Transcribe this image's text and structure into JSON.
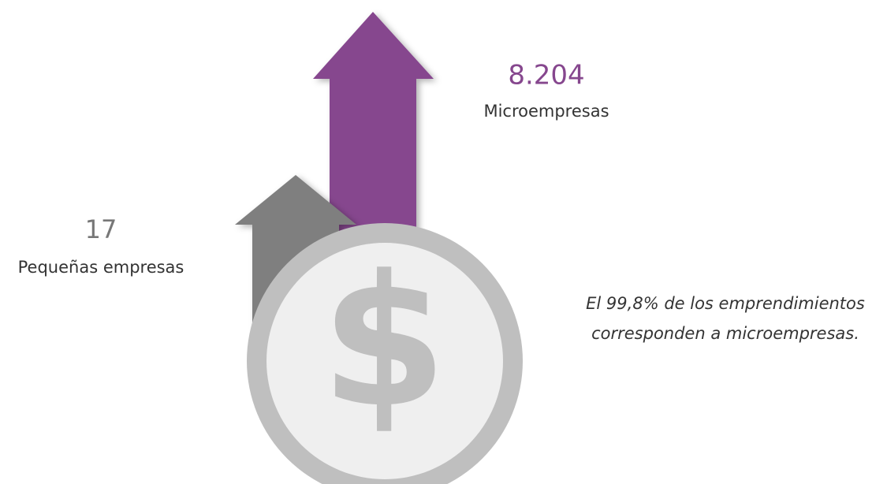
{
  "items": [
    {
      "value": "8.204",
      "label": "Microempresas"
    },
    {
      "value": "17",
      "label": "Pequeñas empresas"
    }
  ],
  "note": [
    "El 99,8% de los emprendimientos",
    "corresponden a microempresas."
  ],
  "icon": "$"
}
